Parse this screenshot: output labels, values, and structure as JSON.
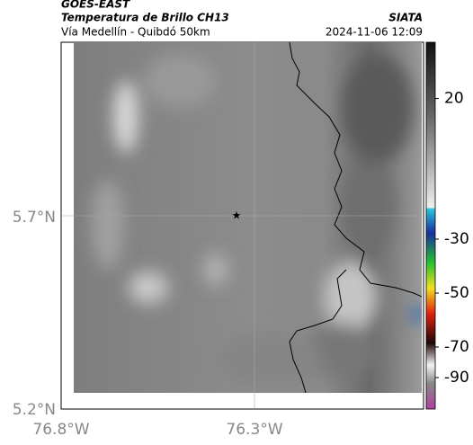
{
  "header": {
    "title": "GOES-EAST",
    "subtitle": "Temperatura de Brillo CH13",
    "location": "Vía Medellín - Quibdó 50km",
    "source": "SIATA",
    "datetime": "2024-11-06 12:09"
  },
  "map": {
    "yticks": [
      "5.7°N",
      "5.2°N"
    ],
    "xticks": [
      "76.8°W",
      "76.3°W"
    ]
  },
  "colorbar": {
    "ticks": [
      20,
      -30,
      -50,
      -70,
      -90
    ]
  }
}
